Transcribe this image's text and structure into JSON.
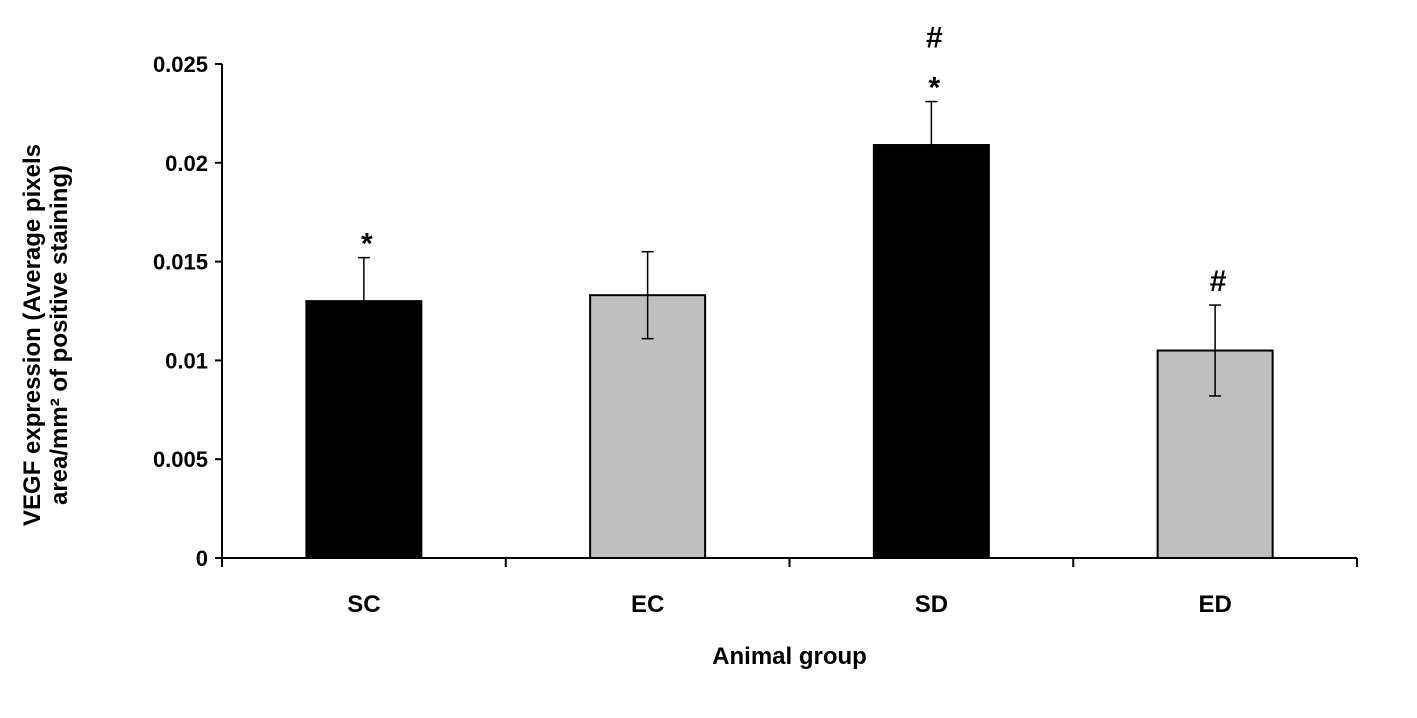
{
  "chart_data": {
    "type": "bar",
    "title": "",
    "xlabel": "Animal group",
    "ylabel_lines": [
      "VEGF expression (Average pixels",
      "area/mm² of positive staining)"
    ],
    "categories": [
      "SC",
      "EC",
      "SD",
      "ED"
    ],
    "values": [
      0.013,
      0.0133,
      0.0209,
      0.0105
    ],
    "errors": [
      0.0022,
      0.0022,
      0.0022,
      0.0023
    ],
    "bar_colors": [
      "#000000",
      "#c0c0c0",
      "#000000",
      "#c0c0c0"
    ],
    "annotations": [
      [
        "*"
      ],
      [],
      [
        "#",
        "*"
      ],
      [
        "#"
      ]
    ],
    "ylim": [
      0,
      0.025
    ],
    "yticks": [
      0,
      0.005,
      0.01,
      0.015,
      0.02,
      0.025
    ],
    "ytick_labels": [
      "0",
      "0.005",
      "0.01",
      "0.015",
      "0.02",
      "0.025"
    ],
    "grid": false,
    "legend": "none"
  }
}
